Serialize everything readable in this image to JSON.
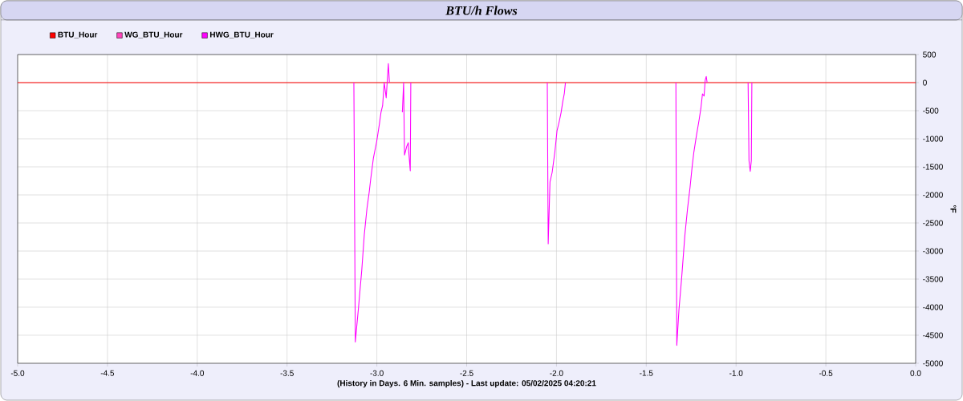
{
  "chart_data": {
    "type": "line",
    "title": "BTU/h Flows",
    "xlabel": "(History in Days. 6 Min. samples) - Last update: 05/02/2025 04:20:21",
    "ylabel": "°F",
    "xlim": [
      -5,
      0
    ],
    "ylim": [
      -5000,
      500
    ],
    "xticks": [
      {
        "value": -5,
        "label": "-5.0"
      },
      {
        "value": -4.5,
        "label": "-4.5"
      },
      {
        "value": -4,
        "label": "-4.0"
      },
      {
        "value": -3.5,
        "label": "-3.5"
      },
      {
        "value": -3,
        "label": "-3.0"
      },
      {
        "value": -2.5,
        "label": "-2.5"
      },
      {
        "value": -2,
        "label": "-2.0"
      },
      {
        "value": -1.5,
        "label": "-1.5"
      },
      {
        "value": -1,
        "label": "-1.0"
      },
      {
        "value": -0.5,
        "label": "-0.5"
      },
      {
        "value": 0,
        "label": "0.0"
      }
    ],
    "yticks": [
      500,
      0,
      -500,
      -1000,
      -1500,
      -2000,
      -2500,
      -3000,
      -3500,
      -4000,
      -4500,
      -5000
    ],
    "grid": true,
    "legend": "top left",
    "marker": "none",
    "line_style": "solid",
    "series": [
      {
        "name": "BTU_Hour",
        "color": "#ff0000",
        "x": [
          -5,
          0
        ],
        "values": [
          0,
          0
        ]
      },
      {
        "name": "WG_BTU_Hour",
        "color": "#ff44bb"
      },
      {
        "name": "HWG_BTU_Hour",
        "color": "#ff00ff",
        "x": [
          -3.128,
          -3.12,
          -3.102,
          -3.084,
          -3.07,
          -3.055,
          -3.043,
          -3.034,
          -3.019,
          -3.001,
          -2.986,
          -2.977,
          -2.968,
          -2.959,
          -2.948,
          -2.936,
          -2.93,
          -2.9,
          -2.858,
          -2.851,
          -2.846,
          -2.834,
          -2.825,
          -2.823,
          -2.814,
          -2.811,
          -2.5,
          -2.051,
          -2.046,
          -2.036,
          -2.024,
          -2.009,
          -1.997,
          -1.985,
          -1.974,
          -1.965,
          -1.956,
          -1.95,
          -1.6,
          -1.335,
          -1.33,
          -1.318,
          -1.303,
          -1.285,
          -1.27,
          -1.256,
          -1.244,
          -1.235,
          -1.22,
          -1.205,
          -1.196,
          -1.187,
          -1.178,
          -1.172,
          -1.166,
          -1.161,
          -1.0,
          -0.933,
          -0.928,
          -0.921,
          -0.915,
          -0.912
        ],
        "values": [
          0,
          -4620,
          -4000,
          -3340,
          -2710,
          -2240,
          -1960,
          -1710,
          -1340,
          -1050,
          -740,
          -530,
          -410,
          0,
          -270,
          340,
          0,
          null,
          -530,
          0,
          -1290,
          -1140,
          -1070,
          -1210,
          -1570,
          0,
          null,
          0,
          -2870,
          -1770,
          -1600,
          -1240,
          -860,
          -700,
          -530,
          -340,
          -190,
          0,
          null,
          0,
          -4680,
          -4050,
          -3480,
          -2720,
          -2240,
          -1860,
          -1480,
          -1240,
          -930,
          -650,
          -460,
          -200,
          -240,
          40,
          110,
          0,
          null,
          0,
          -1390,
          -1580,
          -1390,
          0
        ]
      }
    ]
  }
}
